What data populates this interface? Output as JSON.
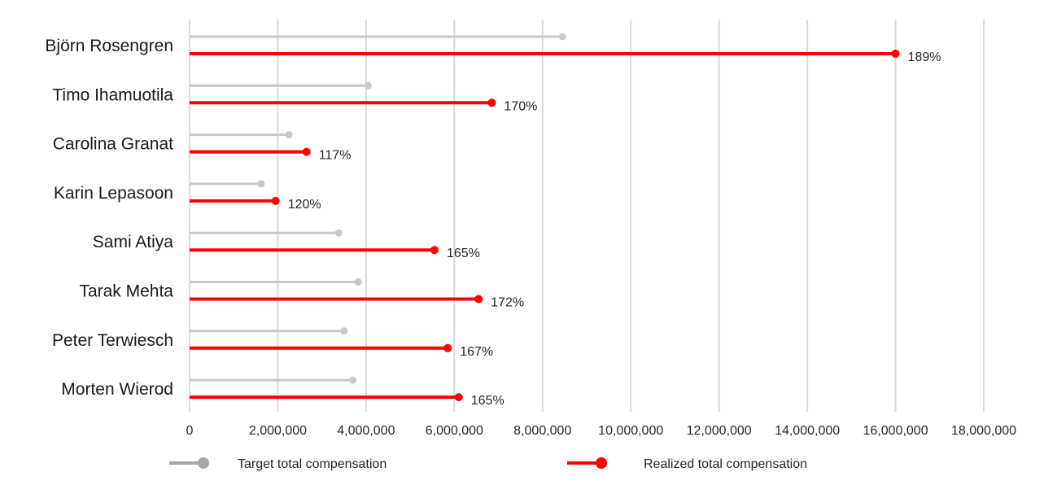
{
  "chart_data": {
    "type": "bar",
    "orientation": "horizontal",
    "style": "lollipop",
    "categories": [
      "Björn Rosengren",
      "Timo Ihamuotila",
      "Carolina Granat",
      "Karin Lepasoon",
      "Sami Atiya",
      "Tarak Mehta",
      "Peter Terwiesch",
      "Morten Wierod"
    ],
    "series": [
      {
        "name": "Target total compensation",
        "color": "#c8c8c8",
        "values": [
          8450000,
          4050000,
          2250000,
          1620000,
          3380000,
          3820000,
          3500000,
          3700000
        ]
      },
      {
        "name": "Realized total compensation",
        "color": "#ff0000",
        "values": [
          16000000,
          6850000,
          2650000,
          1950000,
          5550000,
          6550000,
          5850000,
          6100000
        ]
      }
    ],
    "data_labels": [
      "189%",
      "170%",
      "117%",
      "120%",
      "165%",
      "172%",
      "167%",
      "165%"
    ],
    "xlim": [
      0,
      18000000
    ],
    "x_ticks": [
      0,
      2000000,
      4000000,
      6000000,
      8000000,
      10000000,
      12000000,
      14000000,
      16000000,
      18000000
    ],
    "x_tick_labels": [
      "0",
      "2,000,000",
      "4,000,000",
      "6,000,000",
      "8,000,000",
      "10,000,000",
      "12,000,000",
      "14,000,000",
      "16,000,000",
      "18,000,000"
    ],
    "grid": "vertical",
    "legend": "bottom",
    "legend_icon_colors": [
      "#a6a6a6",
      "#ff0000"
    ],
    "title": "",
    "xlabel": "",
    "ylabel": ""
  }
}
